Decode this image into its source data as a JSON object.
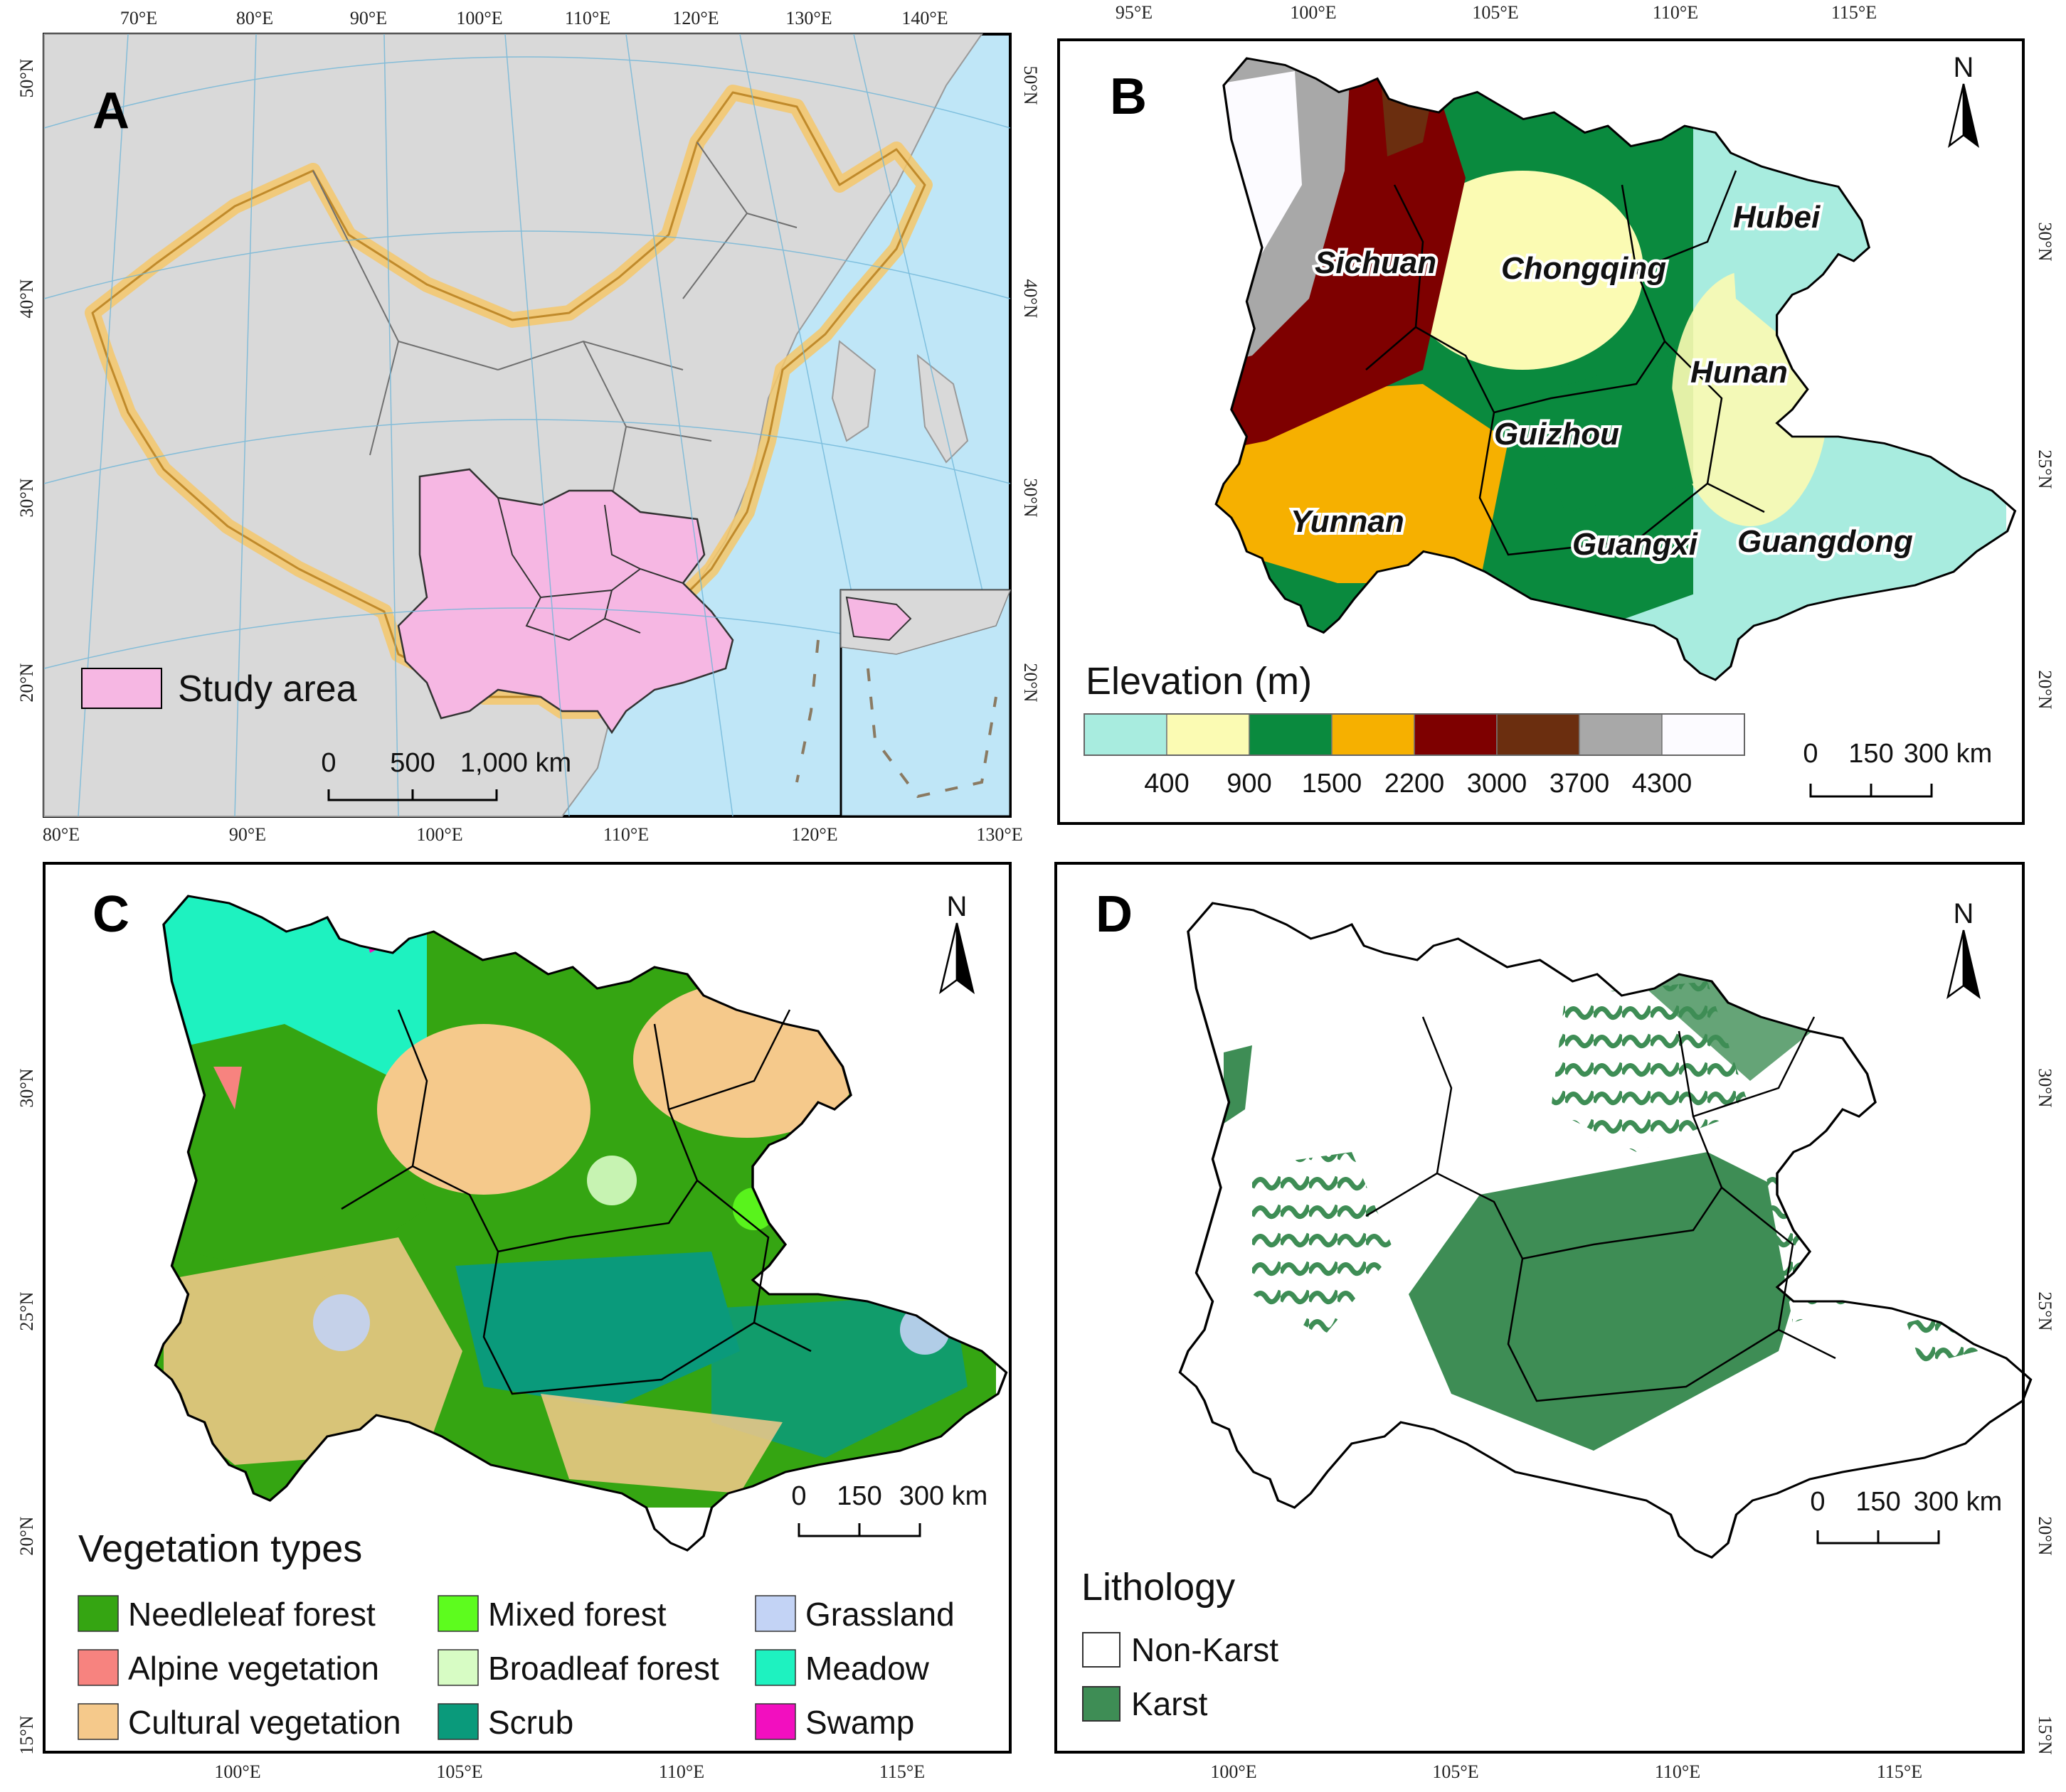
{
  "panels": {
    "A": {
      "letter": "A",
      "top_ticks": [
        "70°E",
        "80°E",
        "90°E",
        "100°E",
        "110°E",
        "120°E",
        "130°E",
        "140°E"
      ],
      "bottom_ticks": [
        "80°E",
        "90°E",
        "100°E",
        "110°E",
        "120°E",
        "130°E"
      ],
      "left_ticks": [
        "50°N",
        "40°N",
        "30°N",
        "20°N"
      ],
      "right_ticks": [
        "50°N",
        "40°N",
        "30°N",
        "20°N"
      ],
      "legend_label": "Study area",
      "scale_labels": [
        "0",
        "500",
        "1,000 km"
      ],
      "colors": {
        "sea": "#bfe6f7",
        "land": "#d9d9d9",
        "study": "#f6b7e3",
        "border_glow": "#f5c76a"
      }
    },
    "B": {
      "letter": "B",
      "top_ticks": [
        "95°E",
        "100°E",
        "105°E",
        "110°E",
        "115°E"
      ],
      "right_ticks": [
        "30°N",
        "25°N",
        "20°N"
      ],
      "north": "N",
      "provinces": [
        "Sichuan",
        "Chongqing",
        "Hubei",
        "Hunan",
        "Guizhou",
        "Yunnan",
        "Guangxi",
        "Guangdong"
      ],
      "legend_title": "Elevation (m)",
      "elevation_breaks": [
        "400",
        "900",
        "1500",
        "2200",
        "3000",
        "3700",
        "4300"
      ],
      "elevation_colors": [
        "#a8ecdf",
        "#fbfbb3",
        "#0a8a3e",
        "#f6b000",
        "#7e0000",
        "#6b2e0f",
        "#a8a8a8",
        "#fcfbff"
      ],
      "scale_labels": [
        "0",
        "150",
        "300 km"
      ]
    },
    "C": {
      "letter": "C",
      "left_ticks": [
        "30°N",
        "25°N",
        "20°N",
        "15°N"
      ],
      "bottom_ticks": [
        "100°E",
        "105°E",
        "110°E",
        "115°E"
      ],
      "north": "N",
      "scale_labels": [
        "0",
        "150",
        "300 km"
      ],
      "legend_title": "Vegetation types",
      "legend_items": [
        {
          "label": "Needleleaf forest",
          "color": "#35a512"
        },
        {
          "label": "Alpine vegetation",
          "color": "#f7837f"
        },
        {
          "label": "Cultural vegetation",
          "color": "#f5c98b"
        },
        {
          "label": "Mixed forest",
          "color": "#5dfc1e"
        },
        {
          "label": "Broadleaf forest",
          "color": "#d7fcc4"
        },
        {
          "label": "Scrub",
          "color": "#0a9a7b"
        },
        {
          "label": "Grassland",
          "color": "#c3d3f5"
        },
        {
          "label": "Meadow",
          "color": "#1ef2c0"
        },
        {
          "label": "Swamp",
          "color": "#f20fbf"
        }
      ]
    },
    "D": {
      "letter": "D",
      "right_ticks": [
        "30°N",
        "25°N",
        "20°N",
        "15°N"
      ],
      "bottom_ticks": [
        "100°E",
        "105°E",
        "110°E",
        "115°E"
      ],
      "north": "N",
      "scale_labels": [
        "0",
        "150",
        "300 km"
      ],
      "legend_title": "Lithology",
      "legend_items": [
        {
          "label": "Non-Karst",
          "color": "#ffffff"
        },
        {
          "label": "Karst",
          "color": "#3e8d55"
        }
      ]
    }
  }
}
